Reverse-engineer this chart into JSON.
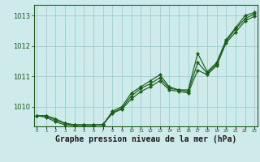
{
  "title": "Graphe pression niveau de la mer (hPa)",
  "background_color": "#ceeaea",
  "grid_color": "#9ecece",
  "line_color": "#1a5e1a",
  "x_values": [
    0,
    1,
    2,
    3,
    4,
    5,
    6,
    7,
    8,
    9,
    10,
    11,
    12,
    13,
    14,
    15,
    16,
    17,
    18,
    19,
    20,
    21,
    22,
    23
  ],
  "series1": [
    1009.7,
    1009.7,
    1009.6,
    1009.45,
    1009.4,
    1009.4,
    1009.4,
    1009.4,
    1009.85,
    1010.0,
    1010.45,
    1010.65,
    1010.85,
    1011.05,
    1010.65,
    1010.55,
    1010.55,
    1011.75,
    1011.15,
    1011.45,
    1012.2,
    1012.6,
    1013.0,
    1013.1
  ],
  "series2": [
    1009.7,
    1009.7,
    1009.55,
    1009.45,
    1009.4,
    1009.4,
    1009.4,
    1009.4,
    1009.8,
    1009.95,
    1010.35,
    1010.6,
    1010.75,
    1010.95,
    1010.6,
    1010.55,
    1010.5,
    1011.45,
    1011.1,
    1011.4,
    1012.15,
    1012.55,
    1012.9,
    1013.05
  ],
  "series3": [
    1009.7,
    1009.65,
    1009.5,
    1009.4,
    1009.38,
    1009.38,
    1009.38,
    1009.42,
    1009.78,
    1009.92,
    1010.25,
    1010.5,
    1010.65,
    1010.85,
    1010.55,
    1010.5,
    1010.45,
    1011.2,
    1011.05,
    1011.35,
    1012.1,
    1012.45,
    1012.82,
    1012.98
  ],
  "ylim_min": 1009.35,
  "ylim_max": 1013.35,
  "yticks": [
    1010,
    1011,
    1012,
    1013
  ]
}
